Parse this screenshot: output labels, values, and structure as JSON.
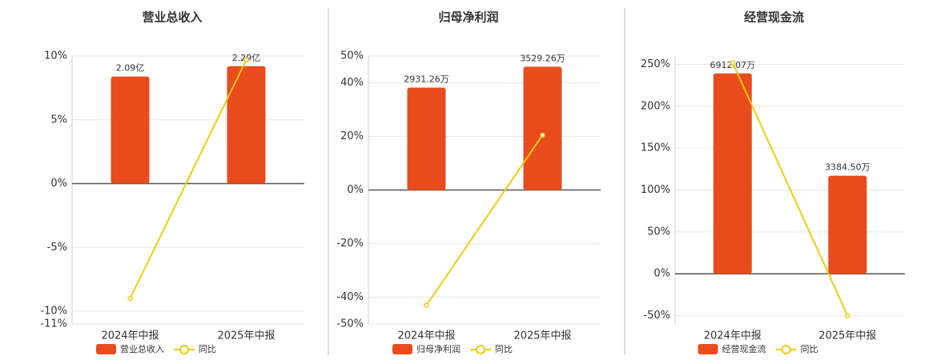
{
  "chart_data": [
    {
      "type": "bar-line",
      "title": "营业总收入",
      "categories": [
        "2024年中报",
        "2025年中报"
      ],
      "series": [
        {
          "name": "营业总收入",
          "type": "bar",
          "color": "#e84c1d",
          "values": [
            2.09,
            2.29
          ],
          "value_labels": [
            "2.09亿",
            "2.29亿"
          ]
        },
        {
          "name": "同比",
          "type": "line",
          "color": "#f2cc0c",
          "values": [
            -9,
            9.7
          ]
        }
      ],
      "ylim": [
        -11,
        10
      ],
      "yticks": [
        {
          "value": -11,
          "label": "-11%"
        },
        {
          "value": -10,
          "label": "-10%"
        },
        {
          "value": -5,
          "label": "-5%"
        },
        {
          "value": 0,
          "label": "0%"
        },
        {
          "value": 5,
          "label": "5%"
        },
        {
          "value": 10,
          "label": "10%"
        }
      ],
      "grid": true
    },
    {
      "type": "bar-line",
      "title": "归母净利润",
      "categories": [
        "2024年中报",
        "2025年中报"
      ],
      "series": [
        {
          "name": "归母净利润",
          "type": "bar",
          "color": "#e84c1d",
          "values": [
            2931.26,
            3529.26
          ],
          "value_labels": [
            "2931.26万",
            "3529.26万"
          ]
        },
        {
          "name": "同比",
          "type": "line",
          "color": "#f2cc0c",
          "values": [
            -43,
            20.5
          ]
        }
      ],
      "ylim": [
        -50,
        50
      ],
      "yticks": [
        {
          "value": -50,
          "label": "-50%"
        },
        {
          "value": -40,
          "label": "-40%"
        },
        {
          "value": -20,
          "label": "-20%"
        },
        {
          "value": 0,
          "label": "0%"
        },
        {
          "value": 20,
          "label": "20%"
        },
        {
          "value": 40,
          "label": "40%"
        },
        {
          "value": 50,
          "label": "50%"
        }
      ],
      "grid": true
    },
    {
      "type": "bar-line",
      "title": "经营现金流",
      "categories": [
        "2024年中报",
        "2025年中报"
      ],
      "series": [
        {
          "name": "经营现金流",
          "type": "bar",
          "color": "#e84c1d",
          "values": [
            6912.07,
            3384.5
          ],
          "value_labels": [
            "6912.07万",
            "3384.50万"
          ]
        },
        {
          "name": "同比",
          "type": "line",
          "color": "#f2cc0c",
          "values": [
            252,
            -50
          ]
        }
      ],
      "ylim": [
        -60,
        260
      ],
      "yticks": [
        {
          "value": -50,
          "label": "-50%"
        },
        {
          "value": 0,
          "label": "0%"
        },
        {
          "value": 50,
          "label": "50%"
        },
        {
          "value": 100,
          "label": "100%"
        },
        {
          "value": 150,
          "label": "150%"
        },
        {
          "value": 200,
          "label": "200%"
        },
        {
          "value": 250,
          "label": "250%"
        }
      ],
      "grid": true
    }
  ]
}
